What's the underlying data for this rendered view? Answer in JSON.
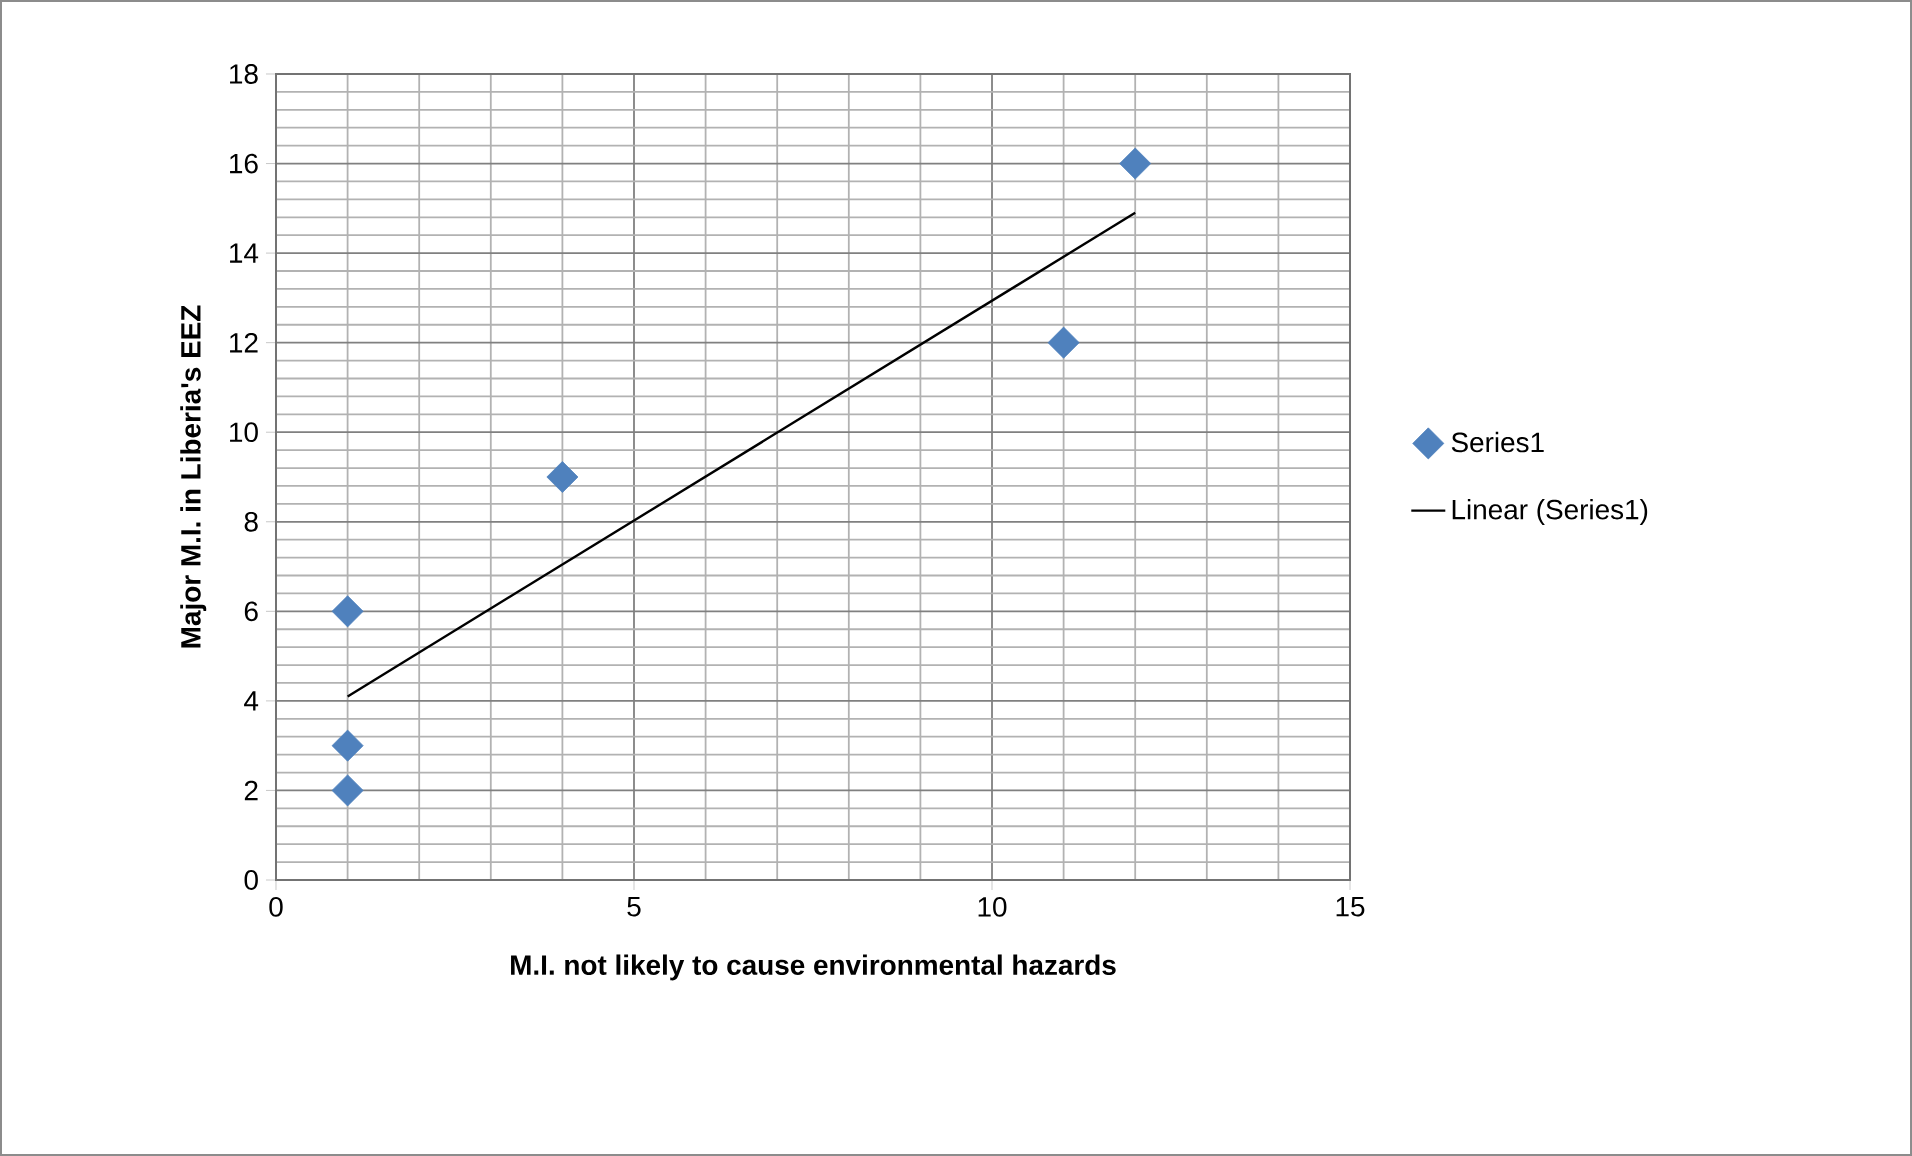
{
  "chart_data": {
    "type": "scatter",
    "xlabel": "M.I. not likely to cause environmental hazards",
    "ylabel": "Major M.I. in Liberia's EEZ",
    "series": [
      {
        "name": "Series1",
        "marker": "diamond",
        "color": "#4f81bd",
        "x": [
          1,
          1,
          1,
          4,
          11,
          12
        ],
        "values": [
          2,
          3,
          6,
          9,
          12,
          16
        ]
      },
      {
        "name": "Linear (Series1)",
        "type": "line",
        "marker": "none",
        "color": "#000000",
        "x": [
          1,
          12
        ],
        "values": [
          4.1,
          14.9
        ]
      }
    ],
    "xlim": [
      0,
      15
    ],
    "xticks": [
      0,
      5,
      10,
      15
    ],
    "ylim": [
      0,
      18
    ],
    "yticks": [
      0,
      2,
      4,
      6,
      8,
      10,
      12,
      14,
      16,
      18
    ],
    "grid": true,
    "legend": "right"
  }
}
